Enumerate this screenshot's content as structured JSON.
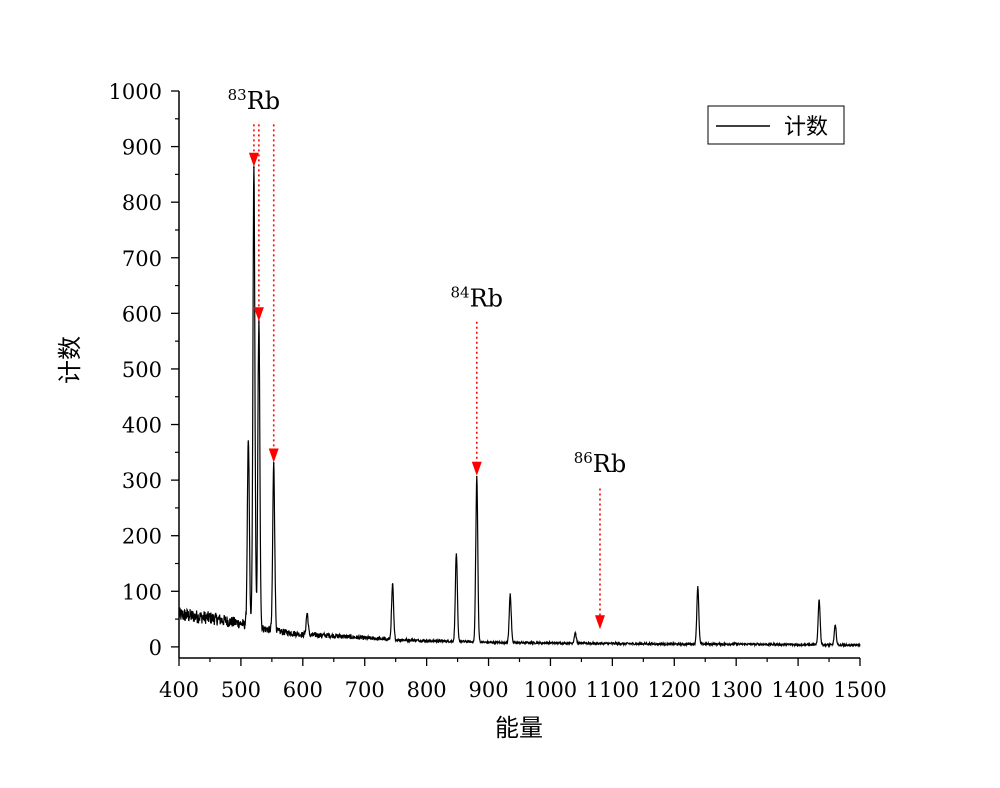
{
  "chart_data": {
    "type": "line",
    "title": "",
    "xlabel": "能量",
    "ylabel": "计数",
    "xlim": [
      400,
      1500
    ],
    "ylim": [
      -20,
      1000
    ],
    "xticks": [
      400,
      500,
      600,
      700,
      800,
      900,
      1000,
      1100,
      1200,
      1300,
      1400,
      1500
    ],
    "yticks": [
      0,
      100,
      200,
      300,
      400,
      500,
      600,
      700,
      800,
      900,
      1000
    ],
    "grid": false,
    "legend": {
      "position": "top-right",
      "entries": [
        "计数"
      ]
    },
    "series": [
      {
        "name": "计数",
        "color": "#000000",
        "baseline": [
          [
            400,
            58
          ],
          [
            450,
            52
          ],
          [
            500,
            42
          ],
          [
            510,
            38
          ],
          [
            560,
            28
          ],
          [
            600,
            22
          ],
          [
            650,
            20
          ],
          [
            700,
            16
          ],
          [
            750,
            13
          ],
          [
            800,
            11
          ],
          [
            850,
            10
          ],
          [
            900,
            8
          ],
          [
            1000,
            7
          ],
          [
            1100,
            6
          ],
          [
            1200,
            5
          ],
          [
            1300,
            5
          ],
          [
            1400,
            4
          ],
          [
            1500,
            3
          ]
        ],
        "peaks": [
          {
            "x": 512,
            "y": 368
          },
          {
            "x": 521,
            "y": 862
          },
          {
            "x": 529,
            "y": 584
          },
          {
            "x": 553,
            "y": 330
          },
          {
            "x": 607,
            "y": 60
          },
          {
            "x": 745,
            "y": 112
          },
          {
            "x": 848,
            "y": 167
          },
          {
            "x": 881,
            "y": 306
          },
          {
            "x": 935,
            "y": 95
          },
          {
            "x": 1040,
            "y": 25
          },
          {
            "x": 1238,
            "y": 108
          },
          {
            "x": 1434,
            "y": 84
          },
          {
            "x": 1460,
            "y": 38
          }
        ]
      }
    ],
    "annotations": [
      {
        "isotope": "Rb",
        "mass": "83",
        "label_x": 521,
        "label_y": 968,
        "arrows": [
          {
            "x": 521,
            "y_top": 940,
            "y_tip": 862
          },
          {
            "x": 529,
            "y_top": 940,
            "y_tip": 584
          },
          {
            "x": 553,
            "y_top": 940,
            "y_tip": 330
          }
        ]
      },
      {
        "isotope": "Rb",
        "mass": "84",
        "label_x": 881,
        "label_y": 612,
        "arrows": [
          {
            "x": 881,
            "y_top": 585,
            "y_tip": 306
          }
        ]
      },
      {
        "isotope": "Rb",
        "mass": "86",
        "label_x": 1080,
        "label_y": 315,
        "arrows": [
          {
            "x": 1080,
            "y_top": 285,
            "y_tip": 30
          }
        ]
      }
    ],
    "arrow_color": "#ff0000"
  }
}
